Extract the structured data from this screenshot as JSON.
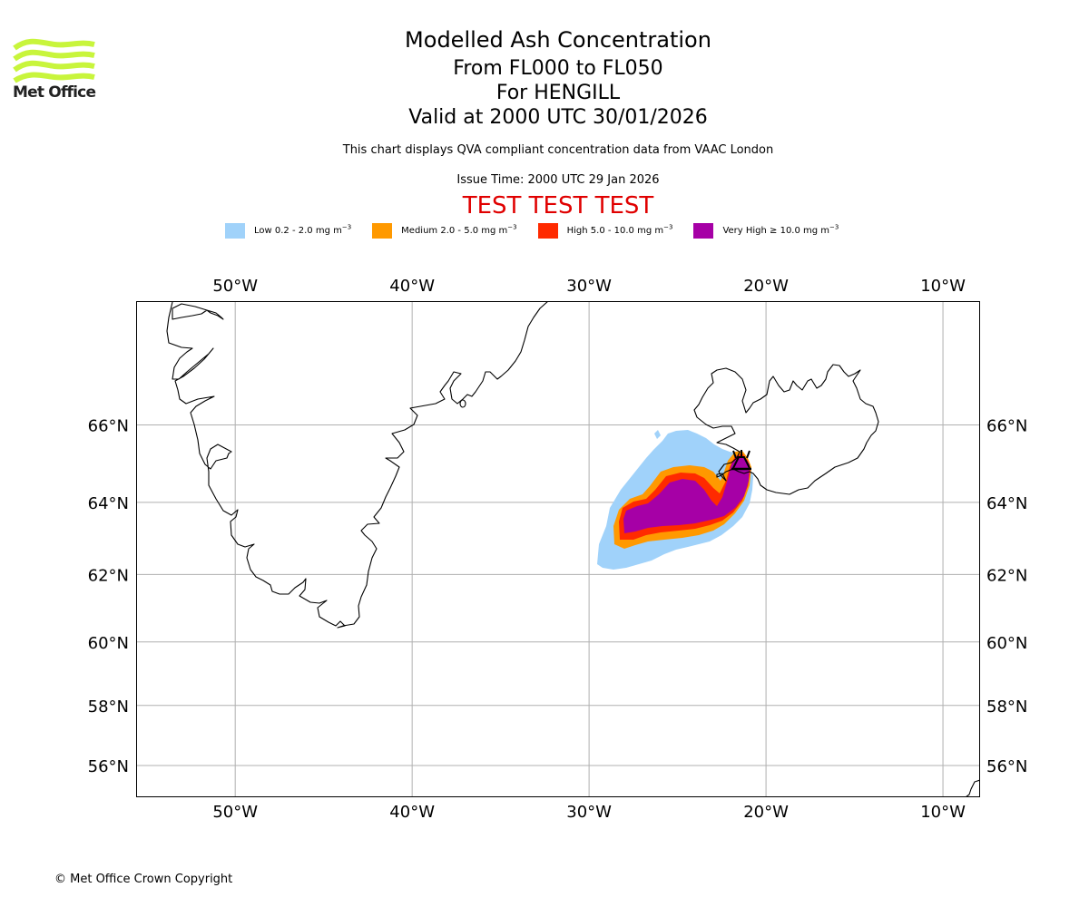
{
  "branding": {
    "logo_text": "Met Office",
    "logo_icon": "met-office-waves-icon",
    "logo_color": "#c8f53c"
  },
  "header": {
    "title": "Modelled Ash Concentration",
    "flight_levels": "From FL000 to FL050",
    "volcano": "For HENGILL",
    "valid_time": "Valid at 2000 UTC 30/01/2026",
    "description": "This chart displays QVA compliant concentration data from VAAC London",
    "issue_time": "Issue Time: 2000 UTC 29 Jan 2026",
    "test_banner": "TEST TEST TEST",
    "test_banner_color": "#e00000"
  },
  "legend": [
    {
      "label": "Low 0.2 - 2.0 mg m",
      "exp": "−3",
      "color": "#a0d2fa"
    },
    {
      "label": "Medium 2.0 - 5.0 mg m",
      "exp": "−3",
      "color": "#ff9900"
    },
    {
      "label": "High 5.0 - 10.0 mg m",
      "exp": "−3",
      "color": "#ff2a00"
    },
    {
      "label": "Very High ≥ 10.0 mg m",
      "exp": "−3",
      "color": "#a600a6"
    }
  ],
  "chart_data": {
    "type": "heatmap",
    "title": "Modelled Ash Concentration",
    "projection": "mercator",
    "lon_range": [
      -55.6,
      -7.9
    ],
    "lat_range": [
      54.9,
      68.9
    ],
    "grid": true,
    "x_ticks": [
      "50°W",
      "40°W",
      "30°W",
      "20°W",
      "10°W"
    ],
    "x_tick_values": [
      -50,
      -40,
      -30,
      -20,
      -10
    ],
    "y_ticks": [
      "66°N",
      "64°N",
      "62°N",
      "60°N",
      "58°N",
      "56°N"
    ],
    "y_tick_values": [
      66,
      64,
      62,
      60,
      58,
      56
    ],
    "legend_position": "top",
    "volcano": {
      "name": "HENGILL",
      "lat": 64.1,
      "lon": -21.3,
      "symbol": "volcano-icon"
    },
    "contours": [
      {
        "level": "Low",
        "range": "0.2 - 2.0 mg m-3",
        "color": "#a0d2fa",
        "extent": {
          "lon": [
            -29.6,
            -20.9
          ],
          "lat": [
            61.4,
            64.9
          ]
        }
      },
      {
        "level": "Medium",
        "range": "2.0 - 5.0 mg m-3",
        "color": "#ff9900",
        "extent": {
          "lon": [
            -28.7,
            -21.1
          ],
          "lat": [
            61.9,
            64.5
          ]
        }
      },
      {
        "level": "High",
        "range": "5.0 - 10.0 mg m-3",
        "color": "#ff2a00",
        "extent": {
          "lon": [
            -28.6,
            -21.2
          ],
          "lat": [
            62.1,
            64.4
          ]
        }
      },
      {
        "level": "Very High",
        "range": ">= 10.0 mg m-3",
        "color": "#a600a6",
        "extent": {
          "lon": [
            -28.3,
            -21.3
          ],
          "lat": [
            62.4,
            64.3
          ]
        }
      }
    ],
    "landmasses": [
      "Greenland",
      "Iceland",
      "Faroe/Scotland fragment"
    ]
  },
  "footer": {
    "copyright": "© Met Office Crown Copyright"
  }
}
